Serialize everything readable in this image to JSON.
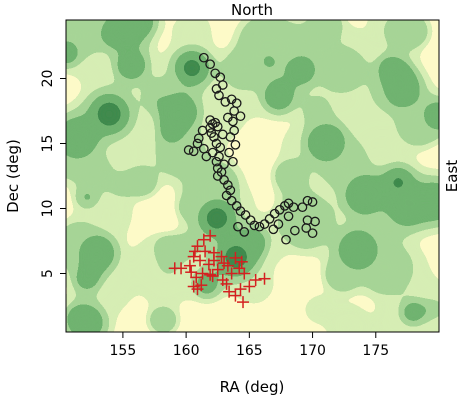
{
  "chart_data": {
    "type": "scatter",
    "title": "",
    "top_label": "North",
    "right_label": "East",
    "xlabel": "RA (deg)",
    "ylabel": "Dec (deg)",
    "xlim": [
      150.5,
      180
    ],
    "ylim": [
      0.5,
      24.5
    ],
    "x_ticks": [
      155,
      160,
      165,
      170,
      175
    ],
    "y_ticks": [
      5,
      10,
      15,
      20
    ],
    "grid": false,
    "legend": "none",
    "background": {
      "type": "filled-contour",
      "colors": [
        "#fdfac8",
        "#d6edb4",
        "#a6d496",
        "#6fb370",
        "#3f8a4e"
      ]
    },
    "series": [
      {
        "marker": "circle",
        "color": "#1a1a1a",
        "points": [
          [
            161.4,
            21.6
          ],
          [
            161.9,
            21.1
          ],
          [
            162.3,
            20.4
          ],
          [
            162.7,
            20.1
          ],
          [
            162.9,
            19.5
          ],
          [
            162.4,
            19.2
          ],
          [
            162.6,
            18.7
          ],
          [
            163.1,
            18.2
          ],
          [
            163.6,
            18.4
          ],
          [
            164.0,
            18.1
          ],
          [
            163.8,
            17.5
          ],
          [
            164.3,
            17.1
          ],
          [
            163.3,
            17.0
          ],
          [
            163.7,
            16.7
          ],
          [
            162.1,
            16.5
          ],
          [
            161.9,
            16.2
          ],
          [
            161.3,
            16.0
          ],
          [
            161.0,
            15.4
          ],
          [
            160.9,
            15.0
          ],
          [
            161.4,
            14.6
          ],
          [
            160.6,
            14.4
          ],
          [
            161.6,
            14.0
          ],
          [
            160.2,
            14.5
          ],
          [
            161.9,
            16.8
          ],
          [
            162.3,
            16.6
          ],
          [
            162.5,
            16.3
          ],
          [
            162.0,
            15.8
          ],
          [
            162.2,
            15.5
          ],
          [
            162.4,
            15.0
          ],
          [
            162.7,
            14.7
          ],
          [
            162.1,
            14.3
          ],
          [
            162.6,
            14.0
          ],
          [
            162.4,
            13.6
          ],
          [
            163.0,
            13.4
          ],
          [
            162.5,
            13.1
          ],
          [
            162.8,
            12.8
          ],
          [
            162.5,
            12.5
          ],
          [
            163.0,
            12.2
          ],
          [
            163.3,
            11.8
          ],
          [
            163.5,
            11.4
          ],
          [
            163.2,
            11.0
          ],
          [
            163.6,
            10.6
          ],
          [
            164.0,
            10.2
          ],
          [
            164.3,
            9.8
          ],
          [
            164.7,
            9.5
          ],
          [
            165.1,
            9.1
          ],
          [
            165.4,
            8.7
          ],
          [
            165.8,
            8.6
          ],
          [
            166.2,
            8.8
          ],
          [
            166.6,
            9.2
          ],
          [
            167.0,
            9.6
          ],
          [
            167.4,
            9.9
          ],
          [
            167.8,
            10.2
          ],
          [
            168.1,
            10.4
          ],
          [
            168.5,
            10.1
          ],
          [
            168.1,
            9.4
          ],
          [
            167.3,
            8.8
          ],
          [
            166.9,
            8.4
          ],
          [
            164.6,
            8.2
          ],
          [
            164.1,
            8.6
          ],
          [
            168.6,
            8.3
          ],
          [
            169.5,
            8.5
          ],
          [
            170.0,
            8.1
          ],
          [
            169.6,
            9.1
          ],
          [
            170.2,
            9.0
          ],
          [
            170.0,
            10.5
          ],
          [
            169.2,
            10.1
          ],
          [
            169.6,
            10.6
          ],
          [
            167.9,
            7.6
          ],
          [
            163.8,
            16.0
          ],
          [
            163.5,
            15.5
          ],
          [
            163.9,
            14.9
          ],
          [
            163.4,
            14.3
          ],
          [
            163.7,
            13.6
          ],
          [
            162.9,
            15.7
          ]
        ]
      },
      {
        "marker": "plus",
        "color": "#d42020",
        "points": [
          [
            161.4,
            7.6
          ],
          [
            161.9,
            7.9
          ],
          [
            160.9,
            7.1
          ],
          [
            161.5,
            6.7
          ],
          [
            160.6,
            6.3
          ],
          [
            161.1,
            6.0
          ],
          [
            160.3,
            5.6
          ],
          [
            159.6,
            5.4
          ],
          [
            159.1,
            5.4
          ],
          [
            160.4,
            5.1
          ],
          [
            160.8,
            4.7
          ],
          [
            161.3,
            5.0
          ],
          [
            161.8,
            5.7
          ],
          [
            162.2,
            6.0
          ],
          [
            162.5,
            5.3
          ],
          [
            162.1,
            4.8
          ],
          [
            160.6,
            4.0
          ],
          [
            160.9,
            3.8
          ],
          [
            161.2,
            4.1
          ],
          [
            162.2,
            6.6
          ],
          [
            162.8,
            6.3
          ],
          [
            163.0,
            5.8
          ],
          [
            163.3,
            5.6
          ],
          [
            163.6,
            5.0
          ],
          [
            163.9,
            6.2
          ],
          [
            164.4,
            5.9
          ],
          [
            164.2,
            5.4
          ],
          [
            164.6,
            5.0
          ],
          [
            163.2,
            4.2
          ],
          [
            163.4,
            3.6
          ],
          [
            163.9,
            3.3
          ],
          [
            164.3,
            3.8
          ],
          [
            164.5,
            2.8
          ],
          [
            165.0,
            4.0
          ],
          [
            165.5,
            4.5
          ],
          [
            166.2,
            4.6
          ],
          [
            161.9,
            4.9
          ],
          [
            162.9,
            4.5
          ],
          [
            160.7,
            6.7
          ]
        ]
      }
    ]
  }
}
